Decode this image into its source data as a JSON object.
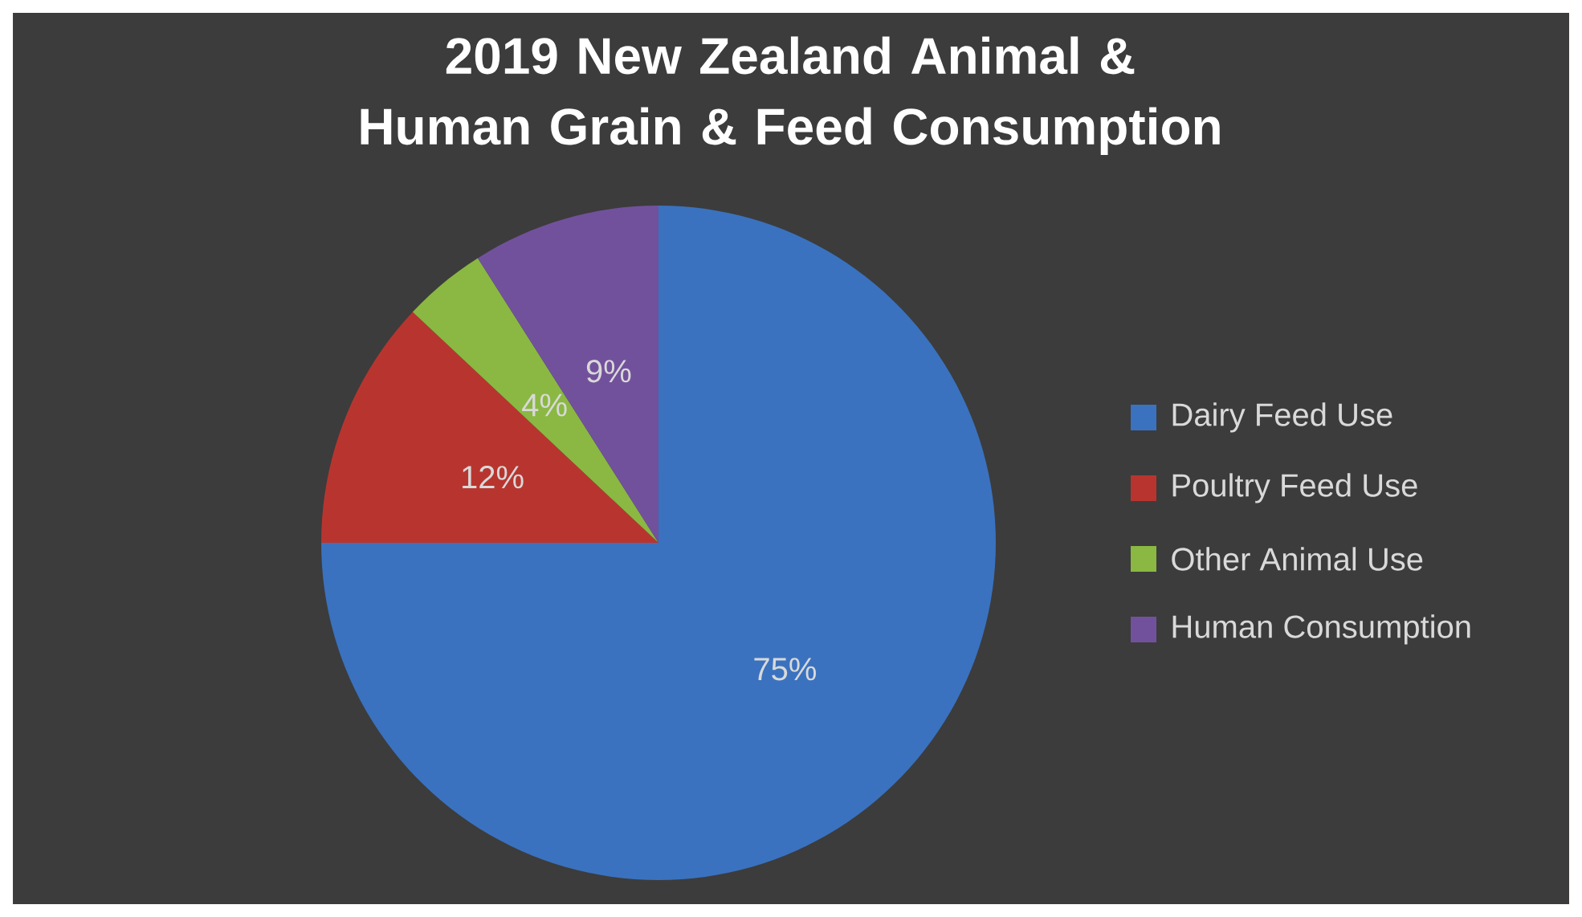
{
  "chart_data": {
    "type": "pie",
    "title": "2019 New Zealand Animal & Human Grain & Feed Consumption",
    "categories": [
      "Dairy Feed Use",
      "Poultry Feed Use",
      "Other Animal Use",
      "Human Consumption"
    ],
    "values": [
      75,
      12,
      4,
      9
    ],
    "colors": [
      "#3a72bf",
      "#b8352f",
      "#8ab842",
      "#72519c"
    ],
    "value_labels": [
      "75%",
      "12%",
      "4%",
      "9%"
    ],
    "legend": "right"
  }
}
